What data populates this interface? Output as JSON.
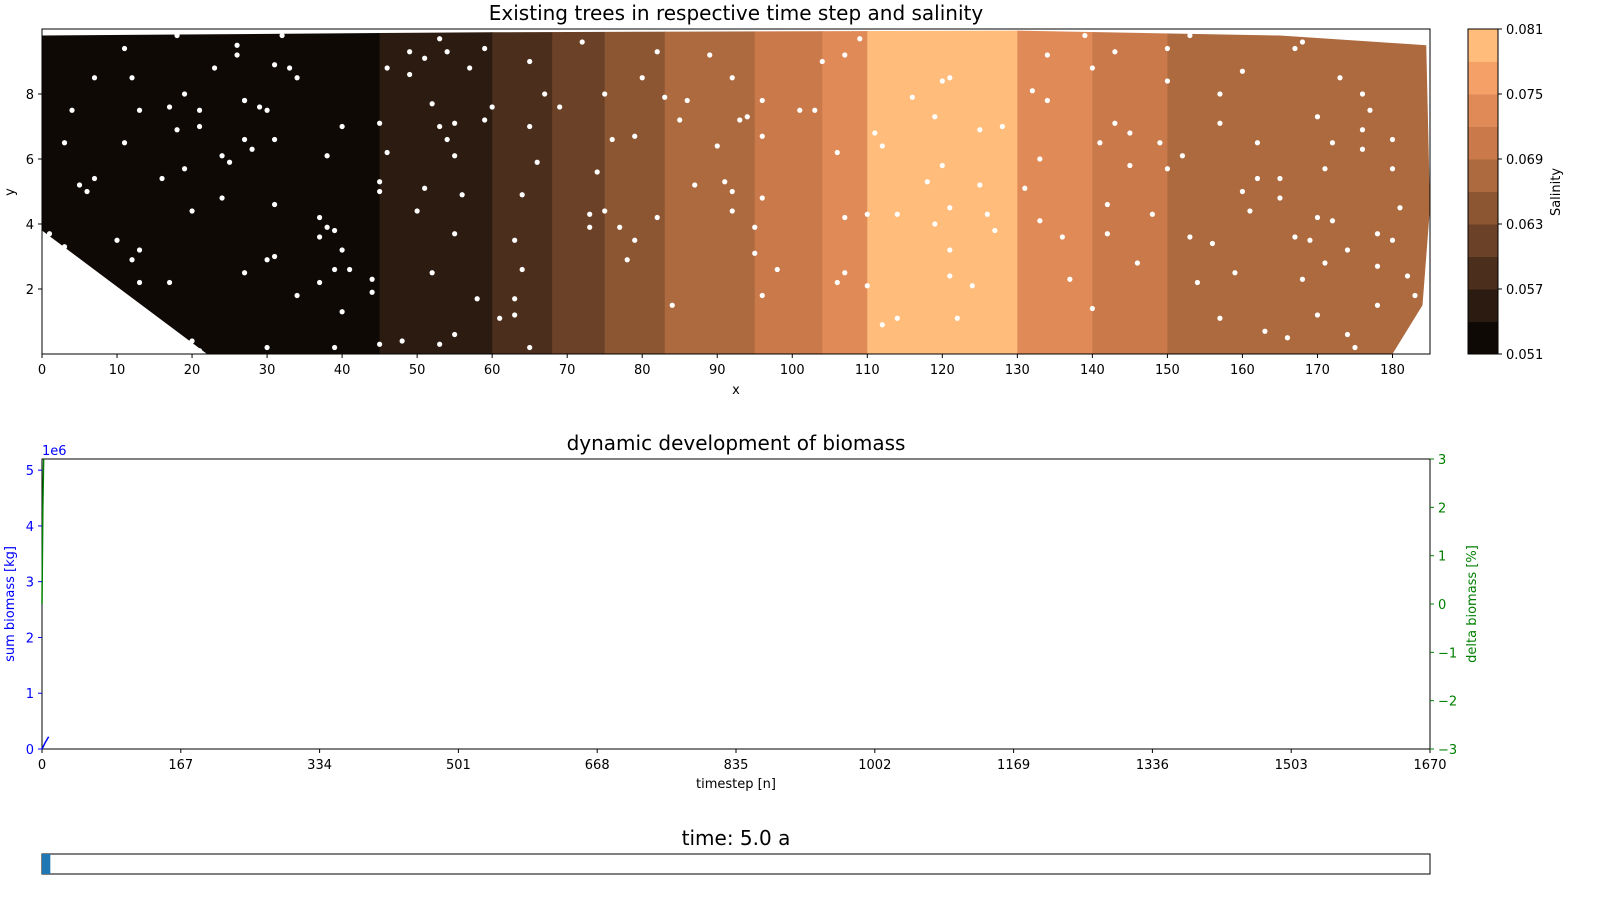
{
  "chart_data": [
    {
      "type": "heatmap",
      "title": "Existing trees in respective time step and salinity",
      "xlabel": "x",
      "ylabel": "y",
      "xlim": [
        0,
        185
      ],
      "ylim": [
        0,
        10
      ],
      "xticks": [
        0,
        10,
        20,
        30,
        40,
        50,
        60,
        70,
        80,
        90,
        100,
        110,
        120,
        130,
        140,
        150,
        160,
        170,
        180
      ],
      "yticks": [
        2,
        4,
        6,
        8
      ],
      "colorbar": {
        "label": "Salinity",
        "ticks": [
          0.051,
          0.057,
          0.063,
          0.069,
          0.075,
          0.081
        ],
        "range": [
          0.051,
          0.081
        ],
        "levels": [
          "#0f0906",
          "#2c1b10",
          "#4b2e1b",
          "#6b4227",
          "#8c5633",
          "#ad6a3f",
          "#c9794a",
          "#e08a57",
          "#f5a067",
          "#ffbc7b"
        ]
      },
      "salinity_bands": [
        {
          "x0": 0,
          "x1": 45,
          "value": 0.0525
        },
        {
          "x0": 45,
          "x1": 60,
          "value": 0.0555
        },
        {
          "x0": 60,
          "x1": 68,
          "value": 0.0585
        },
        {
          "x0": 68,
          "x1": 75,
          "value": 0.0615
        },
        {
          "x0": 75,
          "x1": 83,
          "value": 0.0645
        },
        {
          "x0": 83,
          "x1": 95,
          "value": 0.0675
        },
        {
          "x0": 95,
          "x1": 104,
          "value": 0.0705
        },
        {
          "x0": 104,
          "x1": 110,
          "value": 0.0735
        },
        {
          "x0": 110,
          "x1": 130,
          "value": 0.0795
        },
        {
          "x0": 130,
          "x1": 140,
          "value": 0.0735
        },
        {
          "x0": 140,
          "x1": 150,
          "value": 0.0705
        },
        {
          "x0": 150,
          "x1": 185,
          "value": 0.0675
        }
      ],
      "trees": [
        [
          11,
          9.4
        ],
        [
          18,
          9.8
        ],
        [
          26,
          9.5
        ],
        [
          26,
          9.2
        ],
        [
          32,
          9.8
        ],
        [
          12,
          8.5
        ],
        [
          7,
          8.5
        ],
        [
          23,
          8.8
        ],
        [
          31,
          8.9
        ],
        [
          33,
          8.8
        ],
        [
          34,
          8.5
        ],
        [
          4,
          7.5
        ],
        [
          13,
          7.5
        ],
        [
          17,
          7.6
        ],
        [
          19,
          8.0
        ],
        [
          21,
          7.5
        ],
        [
          27,
          7.8
        ],
        [
          27,
          7.8
        ],
        [
          29,
          7.6
        ],
        [
          30,
          7.5
        ],
        [
          40,
          7.0
        ],
        [
          3,
          6.5
        ],
        [
          11,
          6.5
        ],
        [
          18,
          6.9
        ],
        [
          21,
          7.0
        ],
        [
          24,
          6.1
        ],
        [
          25,
          5.9
        ],
        [
          27,
          6.6
        ],
        [
          28,
          6.3
        ],
        [
          31,
          6.6
        ],
        [
          38,
          6.1
        ],
        [
          19,
          5.7
        ],
        [
          16,
          5.4
        ],
        [
          5,
          5.2
        ],
        [
          6,
          5.0
        ],
        [
          7,
          5.4
        ],
        [
          20,
          4.4
        ],
        [
          24,
          4.8
        ],
        [
          31,
          4.6
        ],
        [
          37,
          4.2
        ],
        [
          10,
          3.5
        ],
        [
          12,
          2.9
        ],
        [
          13,
          3.2
        ],
        [
          3,
          3.3
        ],
        [
          1,
          3.7
        ],
        [
          38,
          3.9
        ],
        [
          39,
          3.8
        ],
        [
          37,
          3.6
        ],
        [
          40,
          3.2
        ],
        [
          27,
          2.5
        ],
        [
          30,
          2.9
        ],
        [
          31,
          3.0
        ],
        [
          39,
          2.6
        ],
        [
          41,
          2.6
        ],
        [
          37,
          2.2
        ],
        [
          34,
          1.8
        ],
        [
          13,
          2.2
        ],
        [
          17,
          2.2
        ],
        [
          10,
          1.7
        ],
        [
          19,
          0.4
        ],
        [
          20,
          0.4
        ],
        [
          21,
          0.1
        ],
        [
          30,
          0.2
        ],
        [
          39,
          0.2
        ],
        [
          40,
          1.3
        ],
        [
          53,
          9.7
        ],
        [
          59,
          9.4
        ],
        [
          49,
          9.3
        ],
        [
          51,
          9.1
        ],
        [
          54,
          9.3
        ],
        [
          46,
          8.8
        ],
        [
          49,
          8.6
        ],
        [
          57,
          8.8
        ],
        [
          52,
          7.7
        ],
        [
          53,
          7.0
        ],
        [
          54,
          6.6
        ],
        [
          55,
          7.1
        ],
        [
          59,
          7.2
        ],
        [
          60,
          7.6
        ],
        [
          55,
          6.1
        ],
        [
          51,
          5.1
        ],
        [
          56,
          4.9
        ],
        [
          50,
          4.4
        ],
        [
          52,
          2.5
        ],
        [
          55,
          3.7
        ],
        [
          58,
          1.7
        ],
        [
          61,
          1.1
        ],
        [
          63,
          1.2
        ],
        [
          55,
          0.6
        ],
        [
          53,
          0.3
        ],
        [
          48,
          0.4
        ],
        [
          45,
          0.3
        ],
        [
          45,
          7.1
        ],
        [
          45,
          5.0
        ],
        [
          45,
          5.3
        ],
        [
          44,
          2.3
        ],
        [
          44,
          1.9
        ],
        [
          46,
          6.2
        ],
        [
          65,
          9.0
        ],
        [
          67,
          8.0
        ],
        [
          65,
          7.0
        ],
        [
          66,
          5.9
        ],
        [
          64,
          4.9
        ],
        [
          63,
          3.5
        ],
        [
          64,
          2.6
        ],
        [
          63,
          1.7
        ],
        [
          65,
          0.2
        ],
        [
          69,
          7.6
        ],
        [
          72,
          9.6
        ],
        [
          75,
          8.0
        ],
        [
          76,
          6.6
        ],
        [
          79,
          6.7
        ],
        [
          74,
          5.6
        ],
        [
          73,
          4.3
        ],
        [
          75,
          4.4
        ],
        [
          77,
          3.9
        ],
        [
          73,
          3.9
        ],
        [
          78,
          2.9
        ],
        [
          80,
          8.5
        ],
        [
          82,
          9.3
        ],
        [
          83,
          7.9
        ],
        [
          82,
          4.2
        ],
        [
          79,
          3.5
        ],
        [
          85,
          7.2
        ],
        [
          87,
          5.2
        ],
        [
          91,
          5.3
        ],
        [
          84,
          1.5
        ],
        [
          86,
          7.8
        ],
        [
          89,
          9.2
        ],
        [
          92,
          8.5
        ],
        [
          90,
          6.4
        ],
        [
          92,
          5.0
        ],
        [
          92,
          4.4
        ],
        [
          93,
          7.2
        ],
        [
          94,
          7.3
        ],
        [
          96,
          7.8
        ],
        [
          96,
          6.7
        ],
        [
          96,
          4.8
        ],
        [
          95,
          3.9
        ],
        [
          95,
          3.1
        ],
        [
          96,
          1.8
        ],
        [
          98,
          2.6
        ],
        [
          101,
          7.5
        ],
        [
          103,
          7.5
        ],
        [
          104,
          9.0
        ],
        [
          107,
          9.2
        ],
        [
          106,
          6.2
        ],
        [
          107,
          4.2
        ],
        [
          107,
          2.5
        ],
        [
          106,
          2.2
        ],
        [
          109,
          9.7
        ],
        [
          111,
          6.8
        ],
        [
          112,
          6.4
        ],
        [
          110,
          4.3
        ],
        [
          110,
          2.1
        ],
        [
          112,
          0.9
        ],
        [
          114,
          4.3
        ],
        [
          114,
          1.1
        ],
        [
          116,
          7.9
        ],
        [
          119,
          7.3
        ],
        [
          120,
          8.4
        ],
        [
          121,
          8.5
        ],
        [
          120,
          5.8
        ],
        [
          118,
          5.3
        ],
        [
          121,
          4.5
        ],
        [
          119,
          4.0
        ],
        [
          121,
          3.2
        ],
        [
          121,
          2.4
        ],
        [
          122,
          1.1
        ],
        [
          125,
          6.9
        ],
        [
          125,
          5.2
        ],
        [
          126,
          4.3
        ],
        [
          124,
          2.1
        ],
        [
          127,
          3.8
        ],
        [
          128,
          7.0
        ],
        [
          131,
          5.1
        ],
        [
          132,
          8.1
        ],
        [
          134,
          9.2
        ],
        [
          134,
          7.8
        ],
        [
          133,
          6.0
        ],
        [
          133,
          4.1
        ],
        [
          136,
          3.6
        ],
        [
          137,
          2.3
        ],
        [
          139,
          9.8
        ],
        [
          140,
          8.8
        ],
        [
          143,
          7.1
        ],
        [
          142,
          4.6
        ],
        [
          142,
          3.7
        ],
        [
          145,
          5.8
        ],
        [
          143,
          9.3
        ],
        [
          140,
          1.4
        ],
        [
          145,
          6.8
        ],
        [
          146,
          2.8
        ],
        [
          150,
          9.4
        ],
        [
          150,
          8.4
        ],
        [
          150,
          5.7
        ],
        [
          148,
          4.3
        ],
        [
          153,
          3.6
        ],
        [
          154,
          2.2
        ],
        [
          157,
          8.0
        ],
        [
          157,
          7.1
        ],
        [
          160,
          8.7
        ],
        [
          162,
          6.5
        ],
        [
          162,
          5.4
        ],
        [
          160,
          5.0
        ],
        [
          167,
          9.4
        ],
        [
          170,
          7.3
        ],
        [
          172,
          6.5
        ],
        [
          173,
          8.5
        ],
        [
          176,
          8.0
        ],
        [
          177,
          7.5
        ],
        [
          176,
          6.9
        ],
        [
          176,
          6.3
        ],
        [
          180,
          6.6
        ],
        [
          180,
          5.7
        ],
        [
          181,
          4.5
        ],
        [
          180,
          3.5
        ],
        [
          182,
          2.4
        ],
        [
          183,
          1.8
        ],
        [
          178,
          1.5
        ],
        [
          174,
          0.6
        ],
        [
          175,
          0.2
        ],
        [
          170,
          1.2
        ],
        [
          168,
          2.3
        ],
        [
          167,
          3.6
        ],
        [
          165,
          5.4
        ],
        [
          161,
          4.4
        ],
        [
          159,
          2.5
        ],
        [
          157,
          1.1
        ],
        [
          156,
          3.4
        ],
        [
          153,
          9.8
        ],
        [
          168,
          9.6
        ],
        [
          170,
          4.2
        ],
        [
          172,
          4.1
        ],
        [
          174,
          3.2
        ],
        [
          171,
          2.8
        ],
        [
          178,
          2.7
        ],
        [
          166,
          0.5
        ],
        [
          163,
          0.7
        ],
        [
          141,
          6.5
        ],
        [
          149,
          6.5
        ],
        [
          152,
          6.1
        ],
        [
          171,
          5.7
        ],
        [
          165,
          4.8
        ],
        [
          169,
          3.5
        ],
        [
          178,
          3.7
        ]
      ]
    },
    {
      "type": "line",
      "title": "dynamic development of biomass",
      "xlabel": "timestep [n]",
      "ylabel": "sum biomass [kg]",
      "y_offset_label": "1e6",
      "xlim": [
        0,
        1670
      ],
      "xticks": [
        0,
        167,
        334,
        501,
        668,
        835,
        1002,
        1169,
        1336,
        1503,
        1670
      ],
      "ylim": [
        0,
        5.2
      ],
      "yticks": [
        0,
        1,
        2,
        3,
        4,
        5
      ],
      "y2label": "delta biomass [%]",
      "y2lim": [
        -3,
        3
      ],
      "y2ticks": [
        3,
        2,
        1,
        0,
        -1,
        -2,
        -3
      ],
      "colors": {
        "left_axis": "#0000ff",
        "right_axis": "#008000"
      },
      "series": [
        {
          "axis": "left",
          "color": "#0000ff",
          "x": [
            0,
            4,
            8
          ],
          "y": [
            0.0,
            0.12,
            0.22
          ]
        },
        {
          "axis": "right",
          "color": "#008000",
          "x": [
            0,
            1,
            2
          ],
          "y": [
            0.0,
            2.0,
            3.0
          ]
        }
      ]
    },
    {
      "type": "bar",
      "title": "time: 5.0 a",
      "progress": 0.006
    }
  ]
}
